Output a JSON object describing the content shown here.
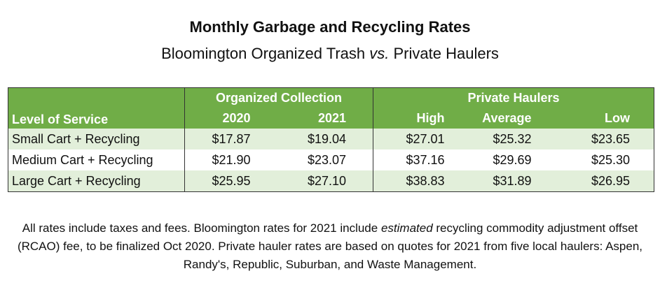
{
  "title": "Monthly Garbage and Recycling Rates",
  "subtitle": {
    "part1": "Bloomington Organized Trash ",
    "vs": "vs.",
    "part2": " Private Haulers"
  },
  "table": {
    "group_headers": {
      "organized": "Organized Collection",
      "private": "Private Haulers"
    },
    "columns": {
      "level": "Level of Service",
      "y2020": "2020",
      "y2021": "2021",
      "high": "High",
      "average": "Average",
      "low": "Low"
    },
    "rows": [
      {
        "level": "Small Cart + Recycling",
        "y2020": "$17.87",
        "y2021": "$19.04",
        "high": "$27.01",
        "average": "$25.32",
        "low": "$23.65"
      },
      {
        "level": "Medium Cart + Recycling",
        "y2020": "$21.90",
        "y2021": "$23.07",
        "high": "$37.16",
        "average": "$29.69",
        "low": "$25.30"
      },
      {
        "level": "Large Cart + Recycling",
        "y2020": "$25.95",
        "y2021": "$27.10",
        "high": "$38.83",
        "average": "$31.89",
        "low": "$26.95"
      }
    ]
  },
  "note": {
    "before_italic": "All rates include taxes and fees. Bloomington rates for 2021 include ",
    "italic": "estimated",
    "after_italic": " recycling commodity adjustment offset (RCAO) fee, to be finalized Oct 2020. Private hauler rates are based on quotes for 2021 from five local haulers: Aspen, Randy's, Republic, Suburban, and Waste Management."
  },
  "colors": {
    "header_green": "#70AD47",
    "band_green": "#E2EFDA"
  }
}
